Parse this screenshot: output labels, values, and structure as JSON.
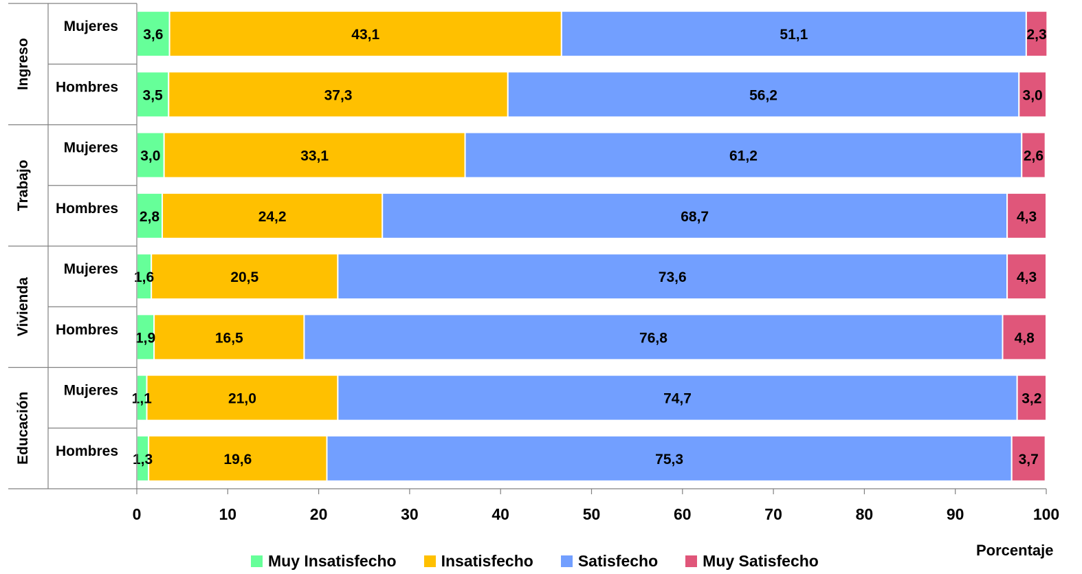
{
  "chart_data": {
    "type": "bar",
    "orientation": "horizontal",
    "stacked": true,
    "groups": [
      {
        "name": "Ingreso",
        "rows": [
          {
            "label": "Mujeres",
            "values": [
              3.6,
              43.1,
              51.1,
              2.3
            ],
            "labels": [
              "3,6",
              "43,1",
              "51,1",
              "2,3"
            ]
          },
          {
            "label": "Hombres",
            "values": [
              3.5,
              37.3,
              56.2,
              3.0
            ],
            "labels": [
              "3,5",
              "37,3",
              "56,2",
              "3,0"
            ]
          }
        ]
      },
      {
        "name": "Trabajo",
        "rows": [
          {
            "label": "Mujeres",
            "values": [
              3.0,
              33.1,
              61.2,
              2.6
            ],
            "labels": [
              "3,0",
              "33,1",
              "61,2",
              "2,6"
            ]
          },
          {
            "label": "Hombres",
            "values": [
              2.8,
              24.2,
              68.7,
              4.3
            ],
            "labels": [
              "2,8",
              "24,2",
              "68,7",
              "4,3"
            ]
          }
        ]
      },
      {
        "name": "Vivienda",
        "rows": [
          {
            "label": "Mujeres",
            "values": [
              1.6,
              20.5,
              73.6,
              4.3
            ],
            "labels": [
              "1,6",
              "20,5",
              "73,6",
              "4,3"
            ]
          },
          {
            "label": "Hombres",
            "values": [
              1.9,
              16.5,
              76.8,
              4.8
            ],
            "labels": [
              "1,9",
              "16,5",
              "76,8",
              "4,8"
            ]
          }
        ]
      },
      {
        "name": "Educación",
        "rows": [
          {
            "label": "Mujeres",
            "values": [
              1.1,
              21.0,
              74.7,
              3.2
            ],
            "labels": [
              "1,1",
              "21,0",
              "74,7",
              "3,2"
            ]
          },
          {
            "label": "Hombres",
            "values": [
              1.3,
              19.6,
              75.3,
              3.7
            ],
            "labels": [
              "1,3",
              "19,6",
              "75,3",
              "3,7"
            ]
          }
        ]
      }
    ],
    "series": [
      {
        "name": "Muy Insatisfecho",
        "color": "#66ff99"
      },
      {
        "name": "Insatisfecho",
        "color": "#ffc000"
      },
      {
        "name": "Satisfecho",
        "color": "#729fff"
      },
      {
        "name": "Muy Satisfecho",
        "color": "#e0567a"
      }
    ],
    "xlim": [
      0,
      100
    ],
    "xticks": [
      0,
      10,
      20,
      30,
      40,
      50,
      60,
      70,
      80,
      90,
      100
    ],
    "xlabel": "Porcentaje",
    "ylabel": "",
    "title": "",
    "grid": false,
    "legend_position": "bottom"
  }
}
